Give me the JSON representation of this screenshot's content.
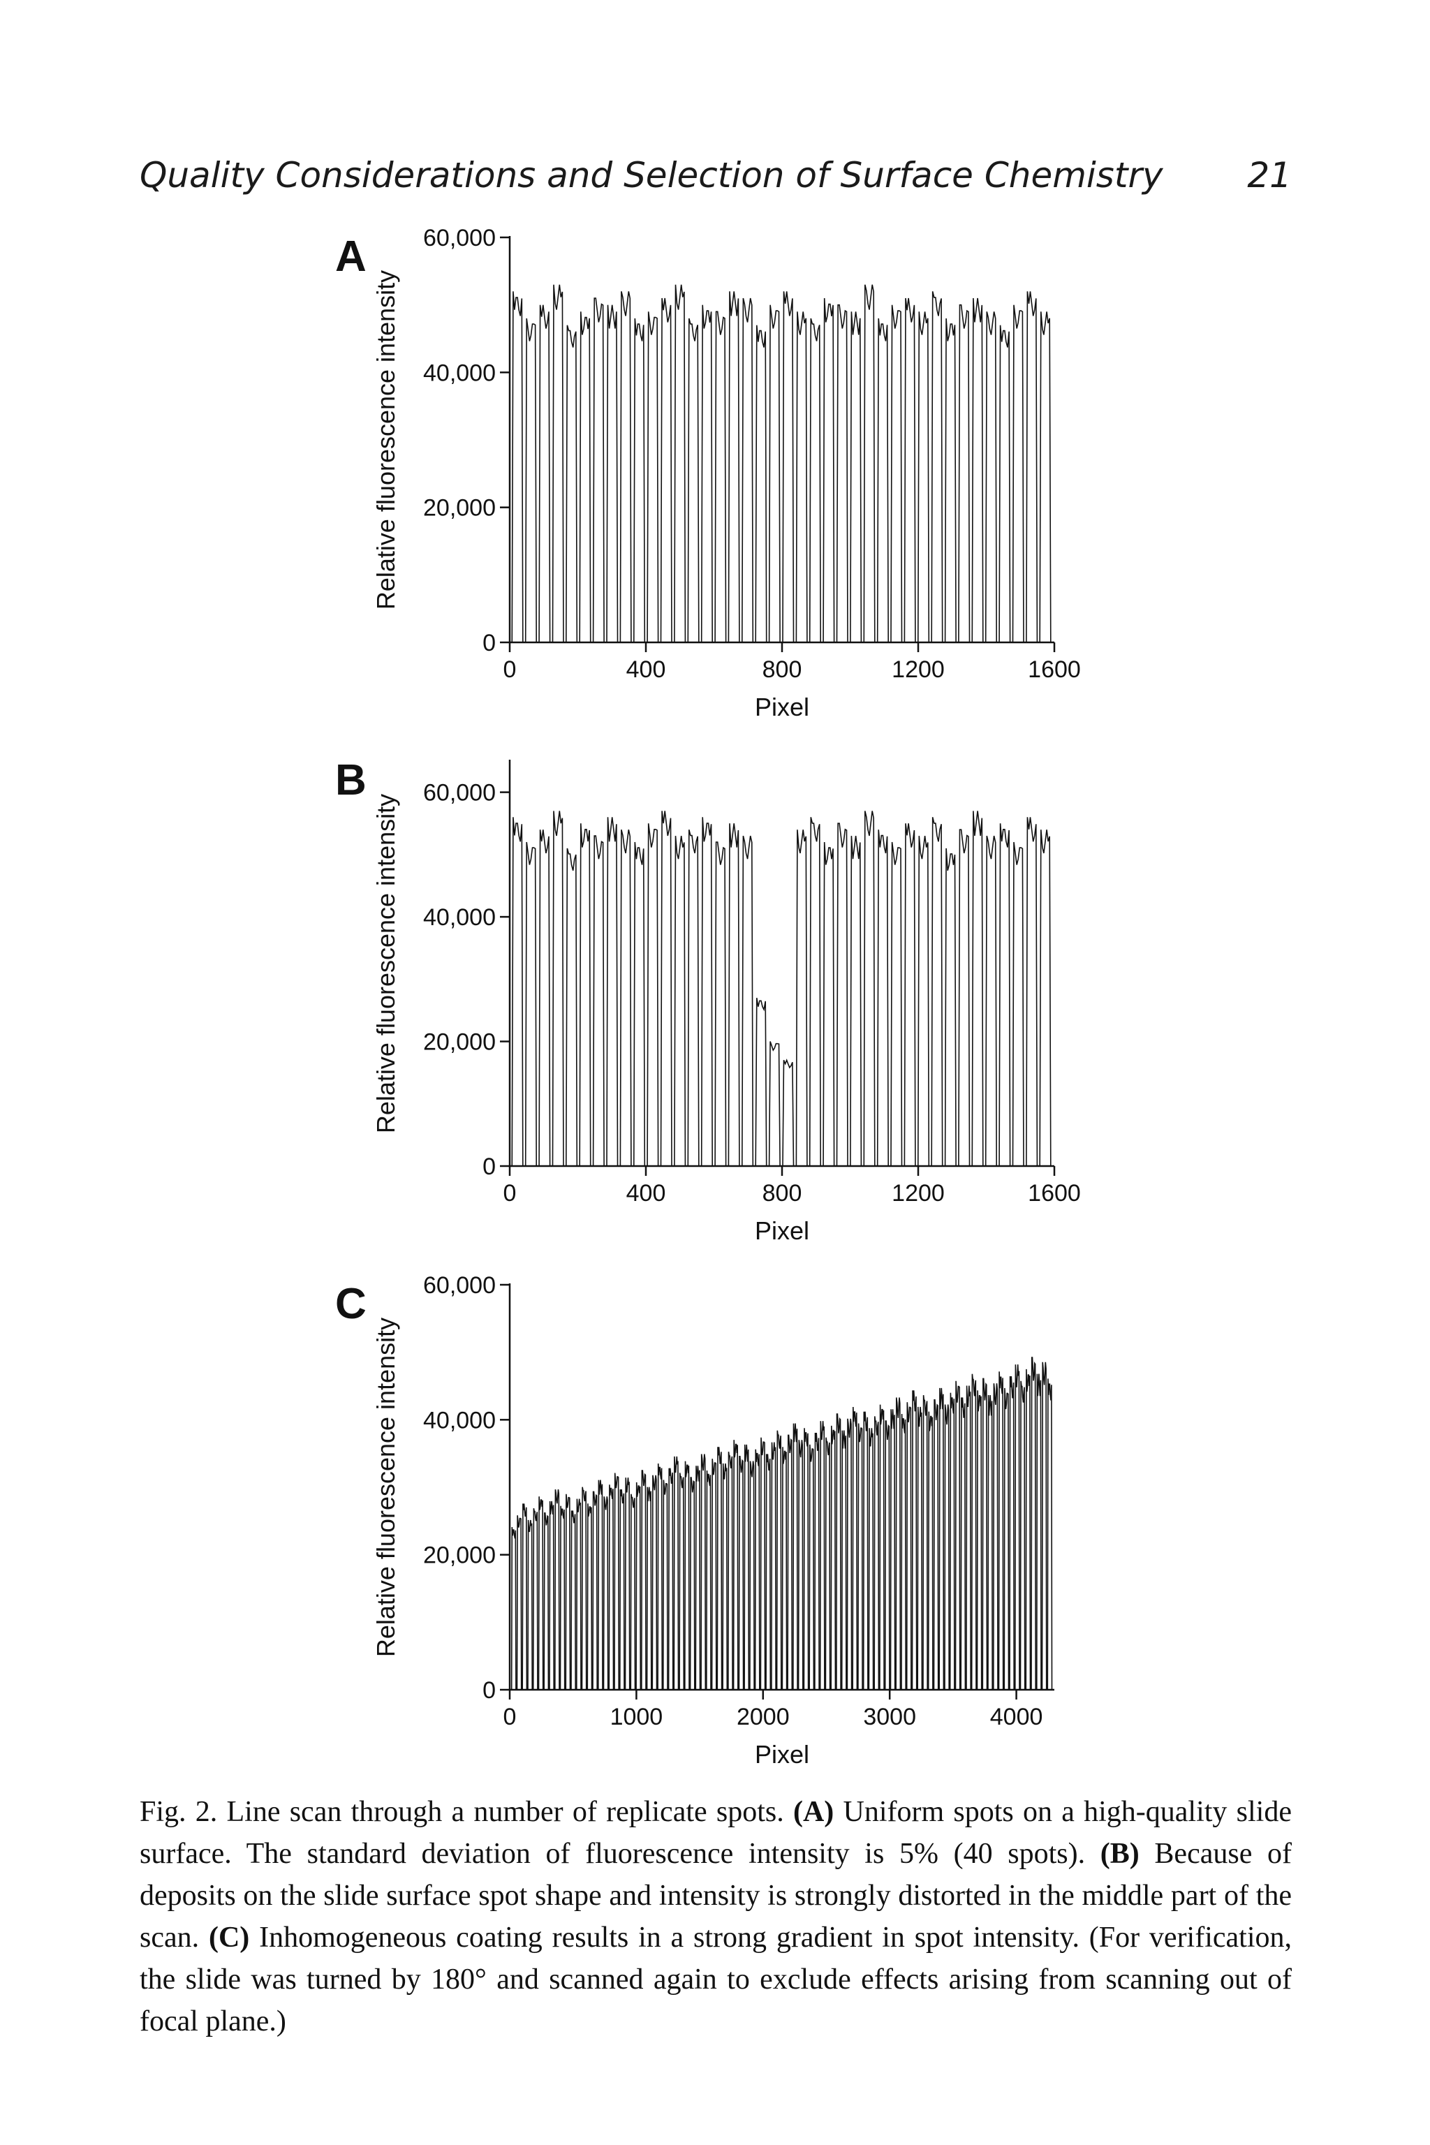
{
  "header": {
    "running_title": "Quality Considerations and Selection of Surface Chemistry",
    "page_number": "21"
  },
  "chart_data": [
    {
      "type": "line",
      "panel": "A",
      "xlabel": "Pixel",
      "ylabel": "Relative fluorescence intensity",
      "xlim": [
        0,
        1600
      ],
      "ylim": [
        0,
        60000
      ],
      "xticks": [
        "0",
        "400",
        "800",
        "1200",
        "1600"
      ],
      "yticks": [
        "0",
        "20,000",
        "40,000",
        "60,000"
      ],
      "n_spots": 40,
      "spot_peaks": [
        52000,
        48000,
        50000,
        53000,
        47000,
        49000,
        51000,
        50000,
        52000,
        48000,
        49000,
        51000,
        53000,
        48000,
        50000,
        49000,
        52000,
        51000,
        47000,
        50000,
        52000,
        49000,
        48000,
        51000,
        50000,
        49000,
        53000,
        48000,
        50000,
        51000,
        49000,
        52000,
        48000,
        50000,
        51000,
        49000,
        47000,
        50000,
        52000,
        49000
      ],
      "background": 0,
      "grid": false
    },
    {
      "type": "line",
      "panel": "B",
      "xlabel": "Pixel",
      "ylabel": "Relative fluorescence intensity",
      "xlim": [
        0,
        1600
      ],
      "ylim": [
        0,
        65000
      ],
      "xticks": [
        "0",
        "400",
        "800",
        "1200",
        "1600"
      ],
      "yticks": [
        "0",
        "20,000",
        "40,000",
        "60,000"
      ],
      "n_spots": 40,
      "spot_peaks": [
        56000,
        52000,
        54000,
        57000,
        51000,
        55000,
        53000,
        56000,
        54000,
        52000,
        55000,
        57000,
        53000,
        54000,
        56000,
        52000,
        55000,
        53000,
        27000,
        20000,
        17000,
        54000,
        56000,
        52000,
        55000,
        53000,
        57000,
        54000,
        52000,
        55000,
        53000,
        56000,
        51000,
        54000,
        57000,
        53000,
        55000,
        52000,
        56000,
        54000
      ],
      "background": 0,
      "grid": false
    },
    {
      "type": "line",
      "panel": "C",
      "xlabel": "Pixel",
      "ylabel": "Relative fluorescence intensity",
      "xlim": [
        0,
        4300
      ],
      "ylim": [
        0,
        60000
      ],
      "xticks": [
        "0",
        "1000",
        "2000",
        "3000",
        "4000"
      ],
      "yticks": [
        "0",
        "20,000",
        "40,000",
        "60,000"
      ],
      "n_spots": 100,
      "peak_trend": {
        "start": 26000,
        "end": 48000
      },
      "background": 0,
      "grid": false
    }
  ],
  "caption": {
    "figure_label": "Fig. 2.",
    "intro": " Line scan through a number of replicate spots. ",
    "marker_a": "(A)",
    "text_a": " Uniform spots on a high-quality slide surface. The standard deviation of fluorescence intensity is 5% (40 spots). ",
    "marker_b": "(B)",
    "text_b": " Because of deposits on the slide surface spot shape and intensity is strongly distorted in the middle part of the scan. ",
    "marker_c": "(C)",
    "text_c": " Inhomogeneous coating results in a strong gradient in spot intensity. (For verification, the slide was turned by 180° and scanned again to exclude effects arising from scanning out of focal plane.)"
  }
}
